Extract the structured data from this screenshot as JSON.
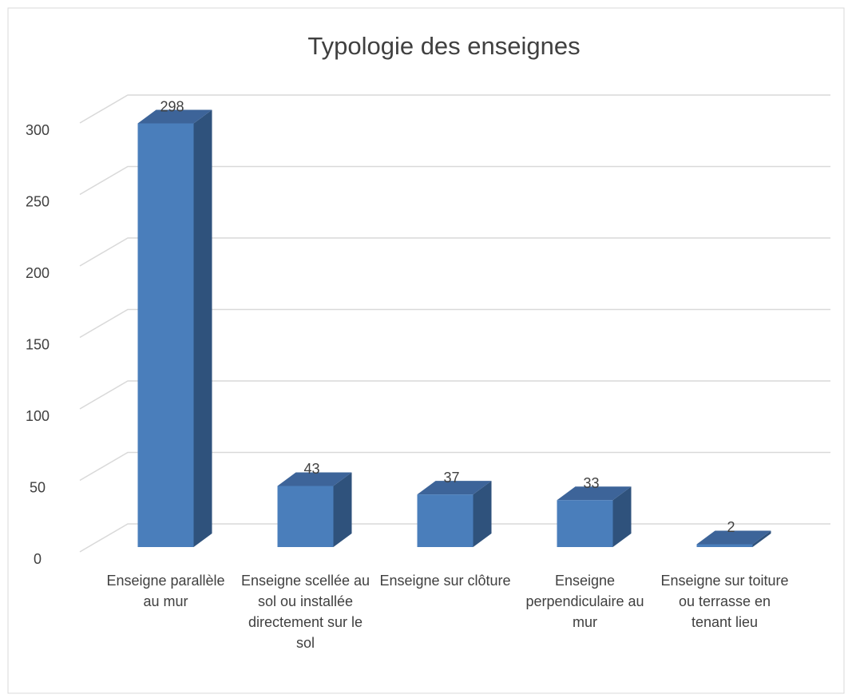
{
  "chart_data": {
    "type": "bar3d",
    "title": "Typologie des enseignes",
    "categories": [
      "Enseigne parallèle au mur",
      "Enseigne scellée au sol ou installée directement sur le sol",
      "Enseigne sur clôture",
      "Enseigne perpendiculaire au mur",
      "Enseigne sur toiture ou terrasse en tenant lieu"
    ],
    "values": [
      298,
      43,
      37,
      33,
      2
    ],
    "color": "#4a7ebb",
    "ylim": [
      0,
      300
    ],
    "yticks": [
      0,
      50,
      100,
      150,
      200,
      250,
      300
    ],
    "grid": true
  }
}
